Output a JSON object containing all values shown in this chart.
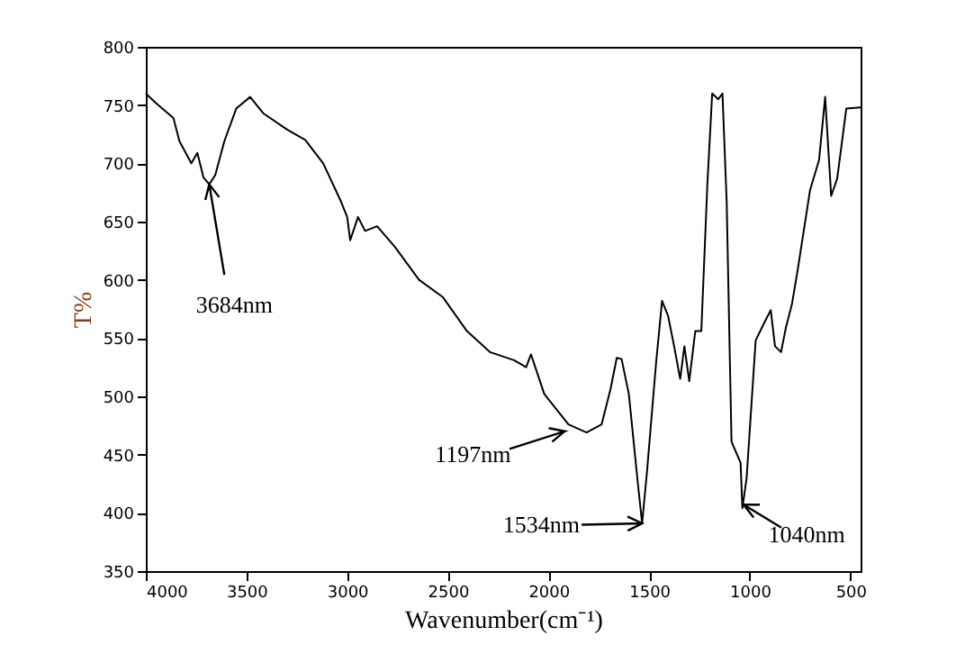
{
  "chart_data": {
    "type": "line",
    "xlabel": "Wavenumber(cm⁻¹)",
    "ylabel": "T%",
    "xlim": [
      4000,
      450
    ],
    "xticks": [
      4000,
      3500,
      3000,
      2500,
      2000,
      1500,
      1000,
      500
    ],
    "ylim": [
      350,
      800
    ],
    "yticks": [
      350,
      400,
      450,
      500,
      550,
      600,
      650,
      700,
      750,
      800
    ],
    "grid": false,
    "marker": "none",
    "line_style": "solid",
    "x": [
      4000,
      3952,
      3863,
      3833,
      3774,
      3744,
      3714,
      3685,
      3655,
      3610,
      3551,
      3482,
      3417,
      3298,
      3208,
      3119,
      3030,
      3000,
      2985,
      2946,
      2911,
      2851,
      2762,
      2643,
      2524,
      2405,
      2291,
      2171,
      2111,
      2087,
      2021,
      1901,
      1811,
      1736,
      1691,
      1661,
      1637,
      1601,
      1556,
      1535,
      1511,
      1466,
      1436,
      1406,
      1376,
      1346,
      1325,
      1301,
      1271,
      1241,
      1211,
      1187,
      1157,
      1136,
      1115,
      1091,
      1046,
      1037,
      1016,
      971,
      926,
      896,
      875,
      845,
      821,
      791,
      761,
      701,
      656,
      626,
      596,
      566,
      521,
      450
    ],
    "series": [
      {
        "color": "#000000",
        "values": [
          760,
          752,
          739,
          719,
          700,
          709,
          688,
          682,
          690,
          719,
          747,
          757,
          743,
          729,
          720,
          700,
          667,
          654,
          634,
          654,
          642,
          646,
          628,
          600,
          585,
          556,
          538,
          531,
          525,
          536,
          502,
          476,
          469,
          476,
          507,
          533,
          532,
          502,
          425,
          391,
          435,
          528,
          582,
          569,
          543,
          515,
          543,
          513,
          556,
          556,
          682,
          760,
          755,
          760,
          667,
          461,
          443,
          404,
          430,
          548,
          564,
          574,
          543,
          538,
          559,
          579,
          610,
          677,
          703,
          757,
          672,
          687,
          747,
          748
        ]
      }
    ],
    "annotations": [
      {
        "text": "3684nm",
        "x": 3685,
        "y": 682
      },
      {
        "text": "1197nm",
        "x": 1920,
        "y": 470
      },
      {
        "text": "1534nm",
        "x": 1535,
        "y": 391
      },
      {
        "text": "1040nm",
        "x": 1031,
        "y": 407
      }
    ]
  }
}
